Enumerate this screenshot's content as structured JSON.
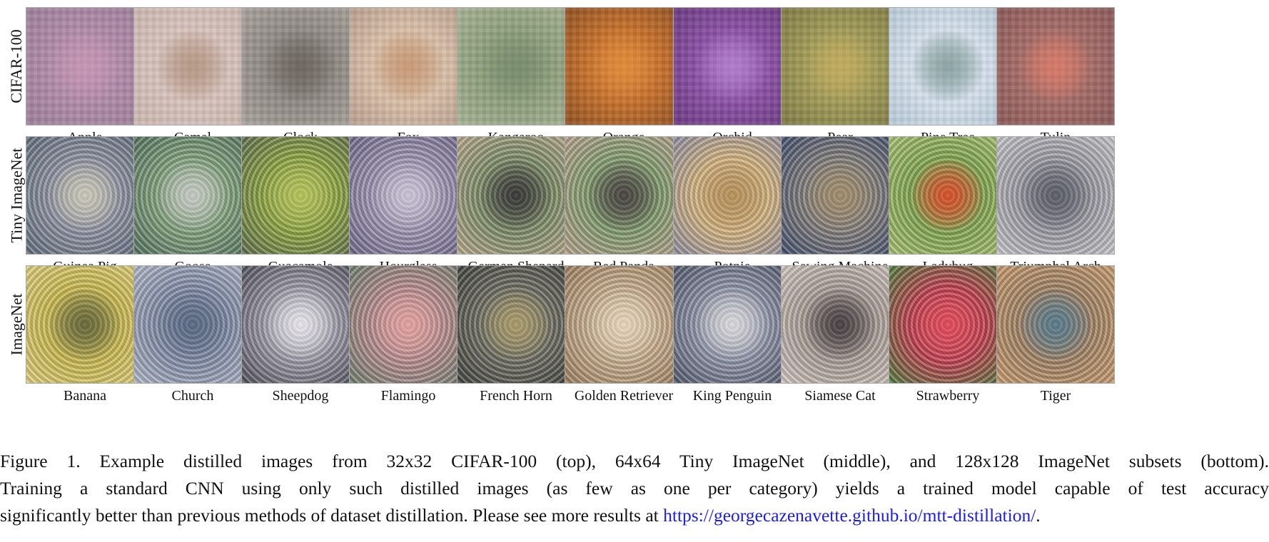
{
  "rows": [
    {
      "label": "CIFAR-100",
      "items": [
        {
          "name": "Apple",
          "colors": [
            "#b08aa8",
            "#c596b5",
            "#9d7f9a"
          ]
        },
        {
          "name": "Camel",
          "colors": [
            "#d8c3bd",
            "#b89a88",
            "#cdb7b0"
          ]
        },
        {
          "name": "Clock",
          "colors": [
            "#8f8a84",
            "#6f6862",
            "#a9a39c"
          ]
        },
        {
          "name": "Fox",
          "colors": [
            "#d9bfa8",
            "#c99c7a",
            "#b9a08f"
          ]
        },
        {
          "name": "Kangaroo",
          "colors": [
            "#8ea07c",
            "#7a8e6e",
            "#a7b394"
          ]
        },
        {
          "name": "Orange",
          "colors": [
            "#c6702a",
            "#e08a3a",
            "#8f5022"
          ]
        },
        {
          "name": "Orchid",
          "colors": [
            "#8a4fa4",
            "#b07ccb",
            "#6a3a80"
          ]
        },
        {
          "name": "Pear",
          "colors": [
            "#a09a56",
            "#c1ac5e",
            "#7f7a45"
          ]
        },
        {
          "name": "Pine Tree",
          "colors": [
            "#d5e0ec",
            "#8ea6a6",
            "#b7cbd8"
          ]
        },
        {
          "name": "Tulip",
          "colors": [
            "#a46a66",
            "#d57a6a",
            "#8a5a5a"
          ]
        }
      ]
    },
    {
      "label": "Tiny ImageNet",
      "items": [
        {
          "name": "Guinea Pig",
          "colors": [
            "#8c8fa0",
            "#c9c7b8",
            "#5c6a78"
          ]
        },
        {
          "name": "Goose",
          "colors": [
            "#7ea07a",
            "#c3c9c0",
            "#4f6e5a"
          ]
        },
        {
          "name": "Guacamole",
          "colors": [
            "#8ba33c",
            "#b4c25a",
            "#5a6a48"
          ]
        },
        {
          "name": "Hourglass",
          "colors": [
            "#9c92b0",
            "#c9c3d6",
            "#6c6488"
          ]
        },
        {
          "name": "German Shepard",
          "colors": [
            "#7a8a64",
            "#3a3a38",
            "#b8a88a"
          ]
        },
        {
          "name": "Red Panda",
          "colors": [
            "#7f9a6a",
            "#4a4642",
            "#b7a08c"
          ]
        },
        {
          "name": "Potpie",
          "colors": [
            "#d4b27c",
            "#b8925c",
            "#8c8aa0"
          ]
        },
        {
          "name": "Sewing Machine",
          "colors": [
            "#7e7a78",
            "#a08c6c",
            "#3c4a6a"
          ]
        },
        {
          "name": "Ladybug",
          "colors": [
            "#7ea44a",
            "#d5502a",
            "#a8c070"
          ]
        },
        {
          "name": "Triumphal Arch",
          "colors": [
            "#9a9aa2",
            "#5c5e6a",
            "#c8c8cc"
          ]
        }
      ]
    },
    {
      "label": "ImageNet",
      "items": [
        {
          "name": "Banana",
          "colors": [
            "#c9b84a",
            "#6a6a3a",
            "#e0d07a"
          ]
        },
        {
          "name": "Church",
          "colors": [
            "#7e8aa6",
            "#5a6a84",
            "#b2b8c8"
          ]
        },
        {
          "name": "Sheepdog",
          "colors": [
            "#9a98a6",
            "#e6e4ea",
            "#4a4a56"
          ]
        },
        {
          "name": "Flamingo",
          "colors": [
            "#b88a8c",
            "#e2a0a0",
            "#6a7a6a"
          ]
        },
        {
          "name": "French Horn",
          "colors": [
            "#6a6a5e",
            "#a89a6a",
            "#3c3c38"
          ]
        },
        {
          "name": "Golden Retriever",
          "colors": [
            "#c8ae8c",
            "#e6d4b8",
            "#9a7a5a"
          ]
        },
        {
          "name": "King Penguin",
          "colors": [
            "#8c92a6",
            "#d8d8dc",
            "#4c5266"
          ]
        },
        {
          "name": "Siamese Cat",
          "colors": [
            "#a89c94",
            "#4a4044",
            "#d4c8c2"
          ]
        },
        {
          "name": "Strawberry",
          "colors": [
            "#c03a4a",
            "#e04a5a",
            "#4a7a3a"
          ]
        },
        {
          "name": "Tiger",
          "colors": [
            "#a08060",
            "#5a7a8a",
            "#c89a6a"
          ]
        }
      ]
    }
  ],
  "caption": {
    "line1": "Figure 1. Example distilled images from 32x32 CIFAR-100 (top), 64x64 Tiny ImageNet (middle), and 128x128 ImageNet subsets (bottom).",
    "line2": "Training a standard CNN using only such distilled images (as few as one per category) yields a trained model capable of test accuracy",
    "line3_text": "significantly better than previous methods of dataset distillation. Please see more results at ",
    "link": "https://georgecazenavette.github.io/mtt-distillation/",
    "line3_end": "."
  }
}
